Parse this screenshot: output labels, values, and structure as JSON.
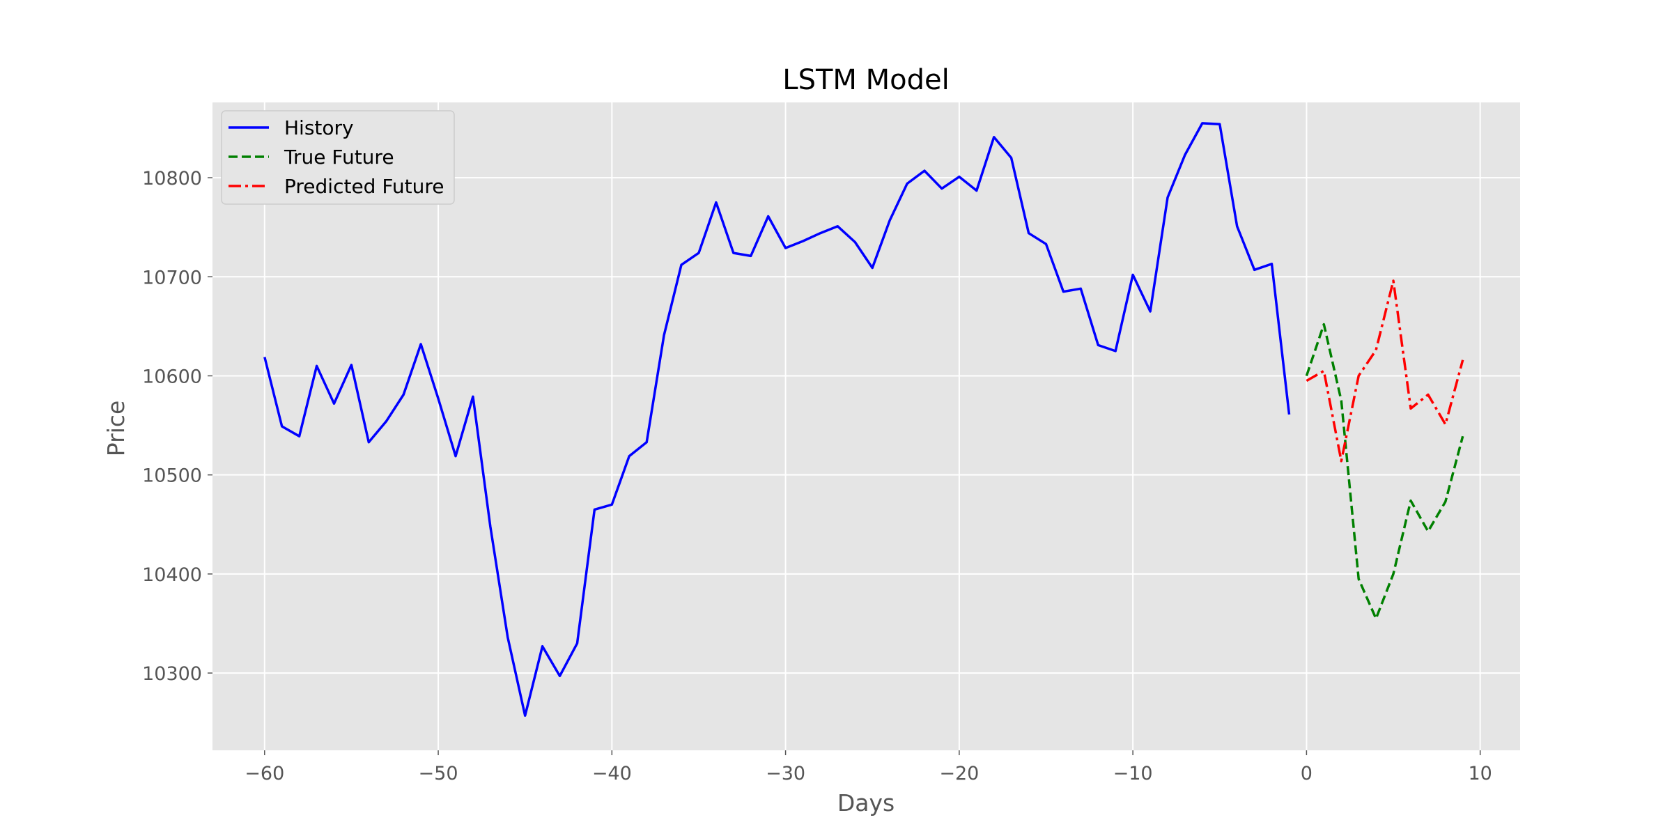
{
  "chart_data": {
    "type": "line",
    "title": "LSTM Model",
    "xlabel": "Days",
    "ylabel": "Price",
    "xlim": [
      -63,
      12.3
    ],
    "ylim": [
      10222,
      10876
    ],
    "xticks": [
      -60,
      -50,
      -40,
      -30,
      -20,
      -10,
      0,
      10
    ],
    "yticks": [
      10300,
      10400,
      10500,
      10600,
      10700,
      10800
    ],
    "grid": true,
    "legend_position": "top-left",
    "series": [
      {
        "name": "History",
        "color": "#0000ff",
        "style": "solid",
        "x": [
          -60,
          -59,
          -58,
          -57,
          -56,
          -55,
          -54,
          -53,
          -52,
          -51,
          -50,
          -49,
          -48,
          -47,
          -46,
          -45,
          -44,
          -43,
          -42,
          -41,
          -40,
          -39,
          -38,
          -37,
          -36,
          -35,
          -34,
          -33,
          -32,
          -31,
          -30,
          -29,
          -28,
          -27,
          -26,
          -25,
          -24,
          -23,
          -22,
          -21,
          -20,
          -19,
          -18,
          -17,
          -16,
          -15,
          -14,
          -13,
          -12,
          -11,
          -10,
          -9,
          -8,
          -7,
          -6,
          -5,
          -4,
          -3,
          -2,
          -1
        ],
        "y": [
          10619,
          10549,
          10539,
          10610,
          10572,
          10611,
          10533,
          10554,
          10581,
          10632,
          10577,
          10519,
          10579,
          10448,
          10336,
          10257,
          10327,
          10297,
          10330,
          10465,
          10470,
          10519,
          10533,
          10641,
          10712,
          10724,
          10775,
          10724,
          10721,
          10761,
          10729,
          10736,
          10744,
          10751,
          10735,
          10709,
          10757,
          10794,
          10807,
          10789,
          10801,
          10787,
          10841,
          10820,
          10744,
          10733,
          10685,
          10688,
          10631,
          10625,
          10702,
          10665,
          10780,
          10823,
          10855,
          10854,
          10751,
          10707,
          10713,
          10561
        ]
      },
      {
        "name": "True Future",
        "color": "#008000",
        "style": "dashed",
        "x": [
          0,
          1,
          2,
          3,
          4,
          5,
          6,
          7,
          8,
          9
        ],
        "y": [
          10600,
          10652,
          10575,
          10395,
          10355,
          10400,
          10474,
          10443,
          10473,
          10539
        ]
      },
      {
        "name": "Predicted Future",
        "color": "#ff0000",
        "style": "dashdot",
        "x": [
          0,
          1,
          2,
          3,
          4,
          5,
          6,
          7,
          8,
          9
        ],
        "y": [
          10595,
          10605,
          10514,
          10600,
          10626,
          10696,
          10567,
          10581,
          10551,
          10616
        ]
      }
    ]
  }
}
